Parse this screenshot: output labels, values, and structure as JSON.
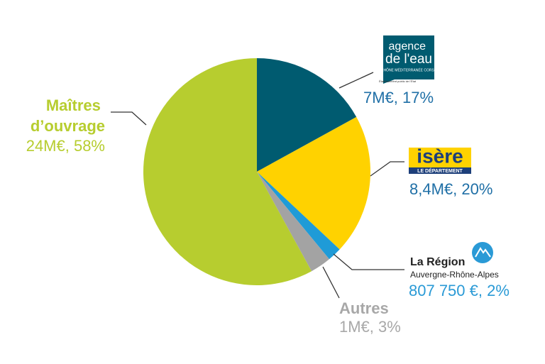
{
  "chart_data": {
    "type": "pie",
    "categories": [
      "agence de l'eau",
      "isère",
      "La Région",
      "Autres",
      "Maîtres d’ouvrage"
    ],
    "category_sublabels": [
      [
        "RHÔNE MÉDITERRANÉE CORSE",
        "Établissement public de l'État"
      ],
      [
        "LE DÉPARTEMENT"
      ],
      [
        "Auvergne-Rhône-Alpes"
      ],
      [],
      []
    ],
    "values": [
      17,
      20,
      2,
      3,
      58
    ],
    "value_labels": [
      "7M€, 17%",
      "8,4M€, 20%",
      "807 750 €, 2%",
      "1M€, 3%",
      "24M€, 58%"
    ],
    "colors": [
      "#005b70",
      "#ffd200",
      "#1f9bd7",
      "#a3a3a3",
      "#b7cd2f"
    ],
    "label_colors": [
      "#1f6fa6",
      "#1f6fa6",
      "#2a9ad6",
      "#a8a8a8",
      "#b7cd2f"
    ]
  }
}
